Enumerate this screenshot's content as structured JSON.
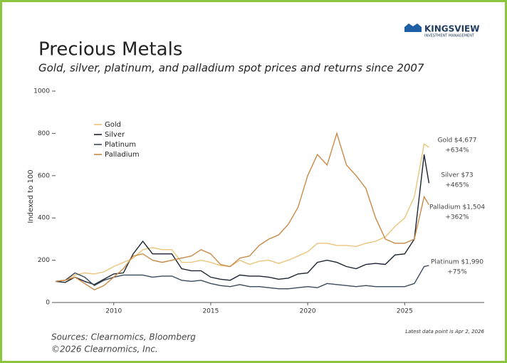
{
  "header": {
    "logo": "KINGSVIEW",
    "logo_sub": "INVESTMENT MANAGEMENT"
  },
  "chart_data": {
    "type": "line",
    "title": "Precious Metals",
    "subtitle": "Gold, silver, platinum, and palladium spot prices and returns since 2007",
    "y_label": "Indexed to 100",
    "x": [
      2007,
      2007.5,
      2008,
      2008.5,
      2009,
      2009.5,
      2010,
      2010.5,
      2011,
      2011.5,
      2012,
      2012.5,
      2013,
      2013.5,
      2014,
      2014.5,
      2015,
      2015.5,
      2016,
      2016.5,
      2017,
      2017.5,
      2018,
      2018.5,
      2019,
      2019.5,
      2020,
      2020.5,
      2021,
      2021.5,
      2022,
      2022.5,
      2023,
      2023.5,
      2024,
      2024.5,
      2025,
      2025.5,
      2026,
      2026.25
    ],
    "series": [
      {
        "name": "Gold",
        "color": "#e9c57d",
        "annotation": [
          "Gold $4,677",
          "+634%"
        ],
        "values": [
          100,
          105,
          130,
          140,
          135,
          145,
          170,
          190,
          210,
          250,
          260,
          250,
          250,
          190,
          190,
          200,
          190,
          175,
          170,
          200,
          180,
          195,
          200,
          185,
          200,
          220,
          240,
          280,
          280,
          270,
          270,
          265,
          280,
          290,
          310,
          360,
          400,
          500,
          750,
          734
        ]
      },
      {
        "name": "Silver",
        "color": "#1b2530",
        "annotation": [
          "Silver $73",
          "+465%"
        ],
        "values": [
          100,
          95,
          120,
          100,
          85,
          110,
          135,
          140,
          230,
          290,
          230,
          230,
          230,
          160,
          150,
          150,
          120,
          110,
          105,
          130,
          125,
          125,
          120,
          110,
          115,
          135,
          140,
          190,
          200,
          190,
          170,
          160,
          180,
          185,
          180,
          225,
          230,
          300,
          700,
          565
        ]
      },
      {
        "name": "Platinum",
        "color": "#3b4a5b",
        "annotation": [
          "Platinum $1,990",
          "+75%"
        ],
        "values": [
          100,
          105,
          140,
          120,
          80,
          105,
          120,
          130,
          130,
          130,
          120,
          125,
          125,
          105,
          100,
          105,
          90,
          80,
          75,
          85,
          75,
          75,
          70,
          65,
          65,
          70,
          75,
          70,
          90,
          85,
          80,
          75,
          80,
          75,
          75,
          75,
          75,
          90,
          170,
          175
        ]
      },
      {
        "name": "Palladium",
        "color": "#c98a48",
        "annotation": [
          "Palladium $1,504",
          "+362%"
        ],
        "values": [
          100,
          105,
          120,
          90,
          60,
          80,
          120,
          160,
          220,
          230,
          200,
          190,
          200,
          210,
          220,
          250,
          230,
          180,
          170,
          210,
          220,
          270,
          300,
          320,
          370,
          450,
          600,
          700,
          650,
          800,
          650,
          600,
          540,
          400,
          300,
          280,
          280,
          300,
          500,
          462
        ]
      }
    ],
    "xlim": [
      2007,
      2029.1
    ],
    "xticks": [
      2010,
      2015,
      2020,
      2025
    ],
    "ylim": [
      0,
      1000
    ],
    "yticks": [
      0,
      200,
      400,
      600,
      800,
      1000
    ],
    "legend": "upper left",
    "note": "Latest data point is Apr 2, 2026",
    "sources": [
      "Sources: Clearnomics, Bloomberg",
      "©2026 Clearnomics, Inc."
    ]
  }
}
